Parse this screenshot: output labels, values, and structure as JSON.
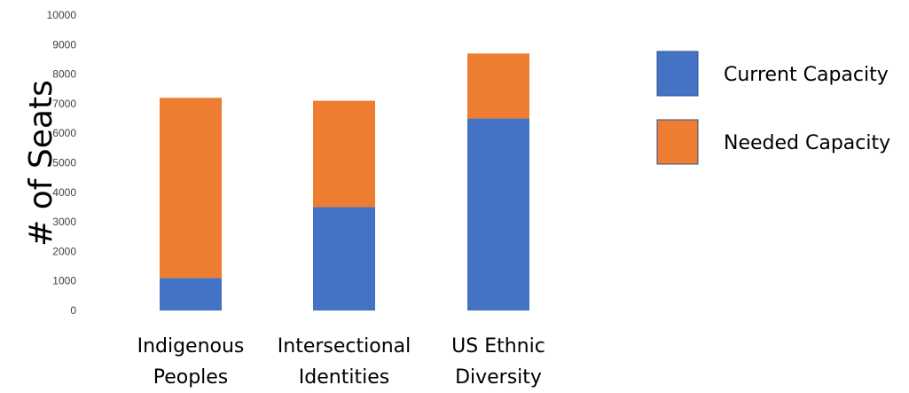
{
  "chart_data": {
    "type": "bar",
    "stacked": true,
    "title": "",
    "xlabel": "",
    "ylabel": "# of Seats",
    "ylim": [
      0,
      10000
    ],
    "yticks": [
      0,
      1000,
      2000,
      3000,
      4000,
      5000,
      6000,
      7000,
      8000,
      9000,
      10000
    ],
    "grid": false,
    "legend_position": "right",
    "categories": [
      [
        "Indigenous",
        "Peoples"
      ],
      [
        "Intersectional",
        "Identities"
      ],
      [
        "US Ethnic",
        "Diversity"
      ]
    ],
    "series": [
      {
        "name": "Current Capacity",
        "color": "#4472C4",
        "values": [
          1100,
          3500,
          6500
        ]
      },
      {
        "name": "Needed Capacity",
        "color": "#ED7D31",
        "values": [
          6100,
          3600,
          2200
        ]
      }
    ]
  }
}
